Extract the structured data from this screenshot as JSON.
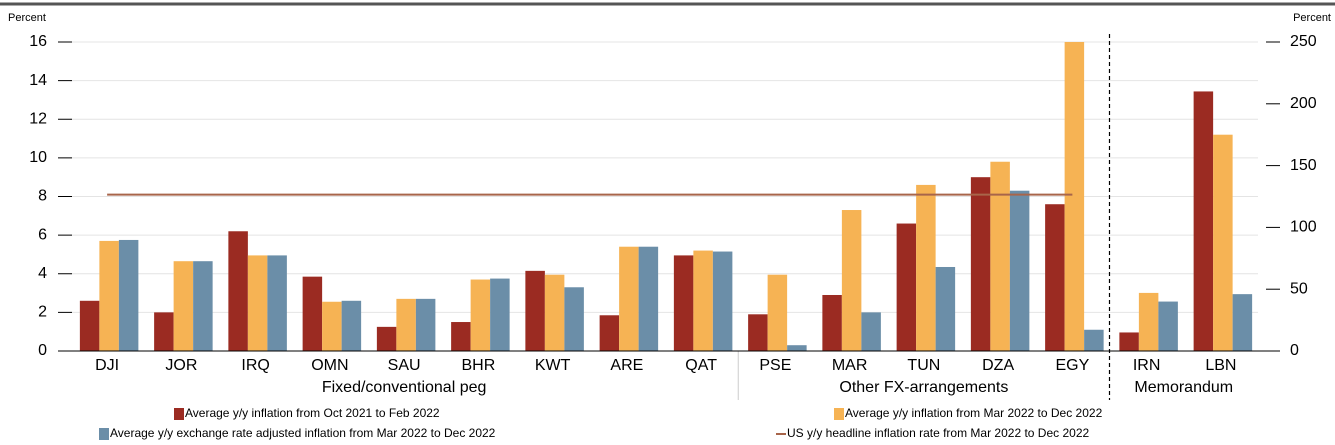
{
  "chart_data": {
    "type": "bar",
    "y_label": "Percent",
    "y2_label": "Percent",
    "ylim": [
      0,
      16
    ],
    "yticks": [
      0,
      2,
      4,
      6,
      8,
      10,
      12,
      14,
      16
    ],
    "y2lim": [
      0,
      250
    ],
    "y2ticks": [
      0,
      50,
      100,
      150,
      200,
      250
    ],
    "grid": true,
    "groups": [
      {
        "label": "Fixed/conventional peg",
        "categories": [
          "DJI",
          "JOR",
          "IRQ",
          "OMN",
          "SAU",
          "BHR",
          "KWT",
          "ARE",
          "QAT"
        ]
      },
      {
        "label": "Other FX-arrangements",
        "categories": [
          "PSE",
          "MAR",
          "TUN",
          "DZA",
          "EGY"
        ]
      },
      {
        "label": "Memorandum",
        "categories": [
          "IRN",
          "LBN"
        ],
        "axis": "y2"
      }
    ],
    "series": [
      {
        "name": "Average y/y inflation from Oct 2021 to Feb 2022",
        "type": "bar",
        "color": "#9b2b22",
        "values": [
          2.6,
          2.0,
          6.2,
          3.85,
          1.25,
          1.5,
          4.15,
          1.85,
          4.95,
          1.9,
          2.9,
          6.6,
          9.0,
          7.6,
          15,
          210
        ]
      },
      {
        "name": "Average y/y inflation from Mar 2022 to Dec 2022",
        "type": "bar",
        "color": "#f6b354",
        "values": [
          5.7,
          4.65,
          4.95,
          2.55,
          2.7,
          3.7,
          3.95,
          5.4,
          5.2,
          3.95,
          7.3,
          8.6,
          9.8,
          16,
          47,
          175
        ]
      },
      {
        "name": "Average y/y exchange rate adjusted inflation from Mar 2022 to Dec 2022",
        "type": "bar",
        "color": "#6b8ea8",
        "values": [
          5.75,
          4.65,
          4.95,
          2.6,
          2.7,
          3.75,
          3.3,
          5.4,
          5.15,
          0.3,
          2.0,
          4.35,
          8.3,
          1.1,
          40,
          46
        ]
      },
      {
        "name": "US y/y headline inflation rate from Mar 2022 to Dec 2022",
        "type": "line",
        "color": "#a8654a",
        "values": [
          8.1,
          8.1,
          8.1,
          8.1,
          8.1,
          8.1,
          8.1,
          8.1,
          8.1,
          8.1,
          8.1,
          8.1,
          8.1,
          8.1,
          null,
          null
        ]
      }
    ]
  }
}
